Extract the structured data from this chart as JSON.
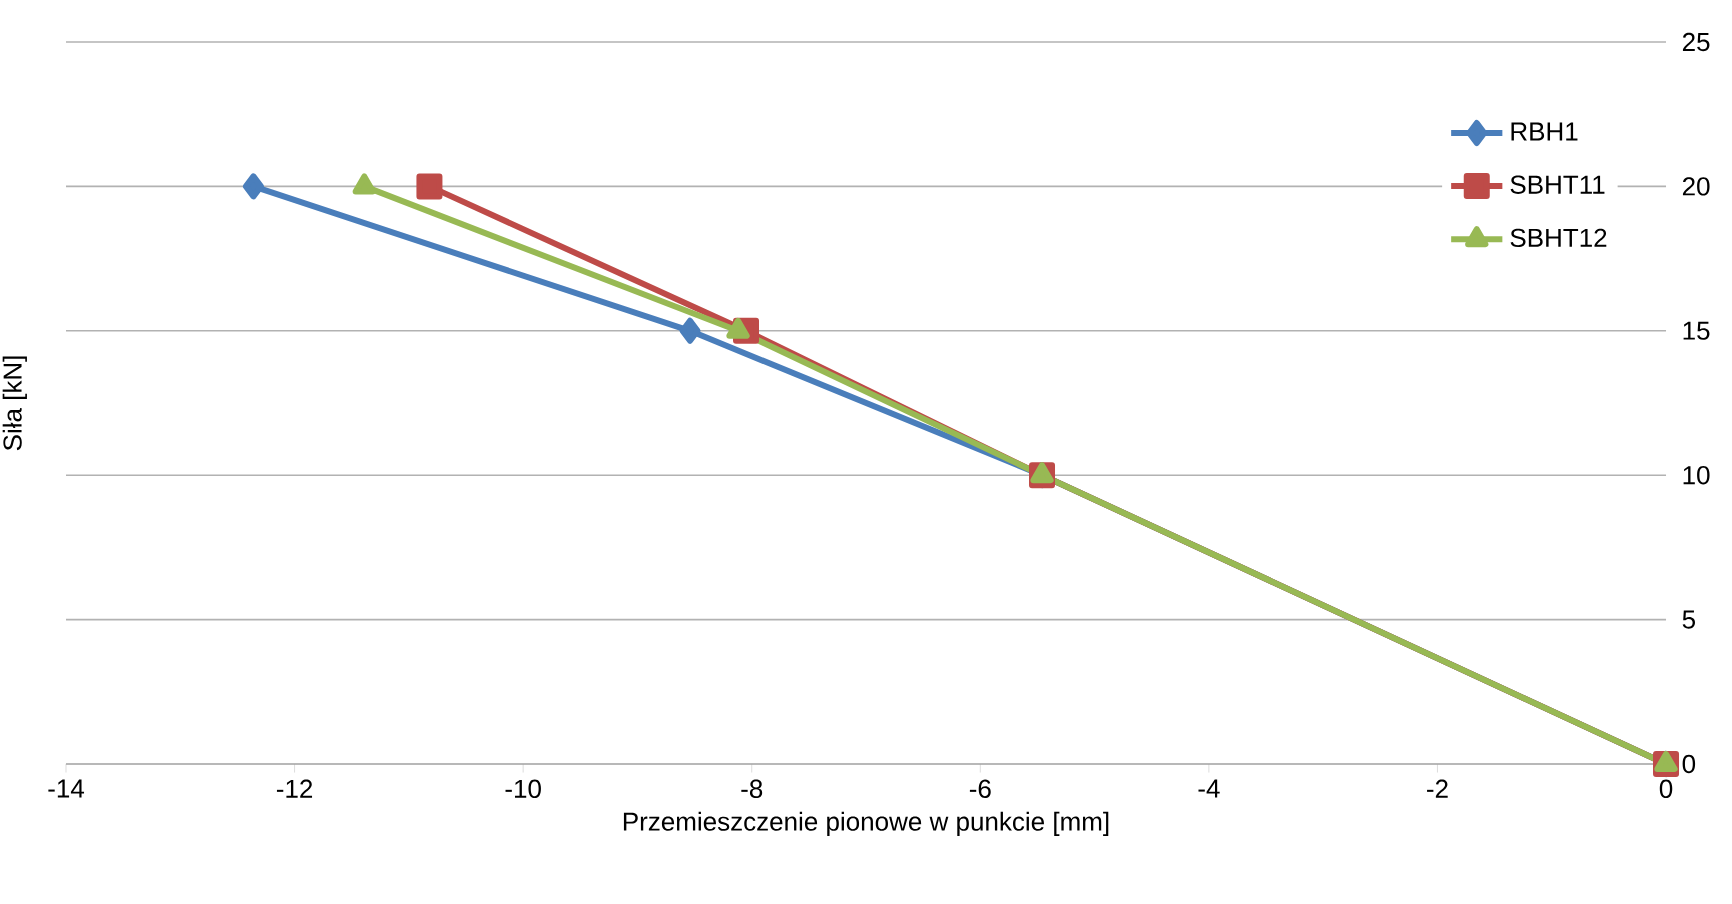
{
  "chart_data": {
    "type": "line",
    "xlabel": "Przemieszczenie pionowe w punkcie [mm]",
    "ylabel": "Siła [kN]",
    "xlim": [
      -14,
      0
    ],
    "xticks": [
      -14,
      -12,
      -10,
      -8,
      -6,
      -4,
      -2,
      0
    ],
    "ylim": [
      0,
      25
    ],
    "yticks": [
      0,
      5,
      10,
      15,
      20,
      25
    ],
    "grid": "y",
    "legend": "top right",
    "series": [
      {
        "name": "RBH1",
        "color": "#4a7ebb",
        "marker": "diamond",
        "x": [
          0,
          -5.46,
          -8.54,
          -12.36
        ],
        "values": [
          0,
          10,
          15,
          20
        ]
      },
      {
        "name": "SBHT11",
        "color": "#be4b48",
        "marker": "square",
        "x": [
          0,
          -5.46,
          -8.05,
          -10.82
        ],
        "values": [
          0,
          10,
          15,
          20
        ]
      },
      {
        "name": "SBHT12",
        "color": "#98b954",
        "marker": "triangle",
        "x": [
          0,
          -5.46,
          -8.12,
          -11.39
        ],
        "values": [
          0,
          10,
          15,
          20
        ]
      }
    ]
  }
}
